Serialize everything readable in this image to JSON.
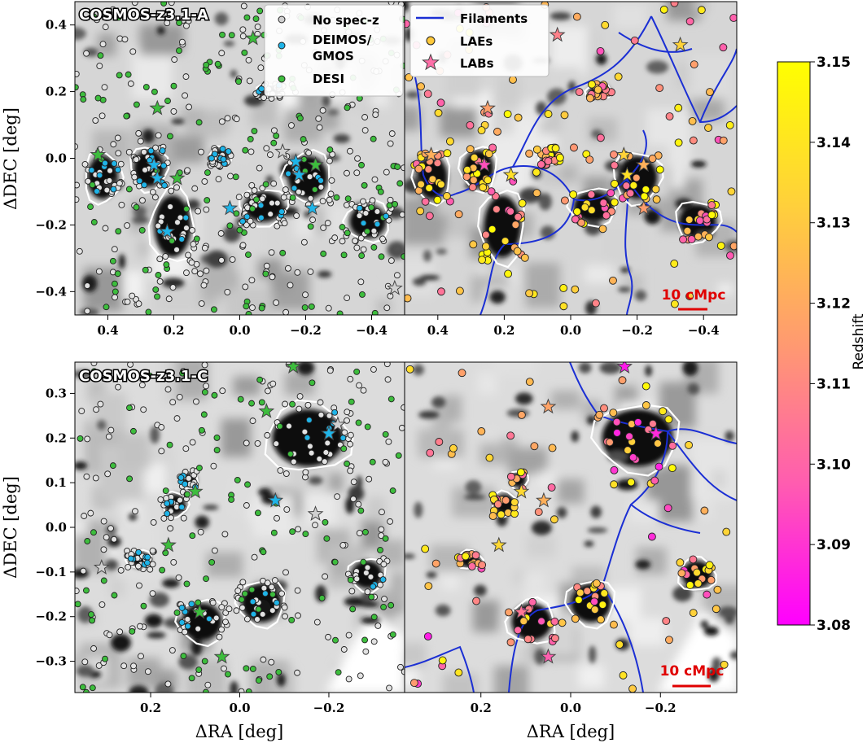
{
  "chart_data": [
    {
      "type": "scatter",
      "panel": "top-left",
      "field_label": "COSMOS-z3.1-A",
      "xlabel": "",
      "ylabel": "ΔDEC [deg]",
      "xlim": [
        0.5,
        -0.5
      ],
      "ylim": [
        -0.47,
        0.47
      ],
      "xticks": [
        "0.4",
        "0.2",
        "0.0",
        "−0.2",
        "−0.4"
      ],
      "yticks": [
        "0.4",
        "0.2",
        "0.0",
        "−0.2",
        "−0.4"
      ],
      "legend": {
        "position": "top-right",
        "entries": [
          "No spec-z",
          "DEIMOS/\nGMOS",
          "DESI"
        ]
      },
      "series": [
        {
          "name": "No spec-z",
          "color": "#d0d0d0"
        },
        {
          "name": "DEIMOS/\nGMOS",
          "color": "#1fb4e8",
          "points": [
            [
              0.26,
              -0.02
            ],
            [
              0.25,
              -0.06
            ],
            [
              0.22,
              -0.22
            ],
            [
              0.19,
              -0.24
            ],
            [
              0.05,
              -0.14
            ],
            [
              0.02,
              -0.16
            ],
            [
              -0.17,
              -0.02
            ],
            [
              -0.18,
              -0.06
            ],
            [
              -0.2,
              -0.1
            ],
            [
              -0.22,
              -0.15
            ],
            [
              -0.4,
              -0.19
            ],
            [
              -0.43,
              -0.2
            ]
          ]
        },
        {
          "name": "DESI",
          "color": "#3dbd3d",
          "points": [
            [
              0.43,
              0.01
            ],
            [
              0.25,
              0.15
            ],
            [
              0.18,
              -0.06
            ],
            [
              0.05,
              0.37
            ],
            [
              -0.21,
              -0.03
            ]
          ]
        }
      ],
      "labs": [
        {
          "type": "star",
          "color": "#3dbd3d",
          "x": -0.04,
          "y": 0.36
        },
        {
          "type": "star",
          "color": "#3dbd3d",
          "x": 0.25,
          "y": 0.15
        },
        {
          "type": "star",
          "color": "#3dbd3d",
          "x": 0.43,
          "y": 0.01
        },
        {
          "type": "star",
          "color": "#1fb4e8",
          "x": 0.26,
          "y": -0.02
        },
        {
          "type": "star",
          "color": "#1fb4e8",
          "x": 0.25,
          "y": -0.06
        },
        {
          "type": "star",
          "color": "#3dbd3d",
          "x": 0.19,
          "y": -0.06
        },
        {
          "type": "star",
          "color": "#1fb4e8",
          "x": 0.22,
          "y": -0.22
        },
        {
          "type": "star",
          "color": "#1fb4e8",
          "x": 0.03,
          "y": -0.15
        },
        {
          "type": "star",
          "color": "#1fb4e8",
          "x": -0.17,
          "y": -0.01
        },
        {
          "type": "star",
          "color": "#3dbd3d",
          "x": -0.23,
          "y": -0.02
        },
        {
          "type": "star",
          "color": "#1fb4e8",
          "x": -0.18,
          "y": -0.05
        },
        {
          "type": "star",
          "color": "#1fb4e8",
          "x": -0.22,
          "y": -0.15
        },
        {
          "type": "star",
          "color": "#d0d0d0",
          "x": -0.13,
          "y": 0.02
        },
        {
          "type": "star",
          "color": "#d0d0d0",
          "x": -0.47,
          "y": -0.39
        }
      ]
    },
    {
      "type": "scatter",
      "panel": "top-right",
      "xlabel": "",
      "ylabel": "",
      "xlim": [
        0.5,
        -0.5
      ],
      "ylim": [
        -0.47,
        0.47
      ],
      "xticks": [
        "0.4",
        "0.2",
        "0.0",
        "−0.2",
        "−0.4"
      ],
      "legend": {
        "position": "top-left",
        "entries": [
          "Filaments",
          "LAEs",
          "LABs"
        ]
      },
      "scale_bar": "10 cMpc",
      "labs": [
        {
          "x": 0.04,
          "y": 0.37,
          "z": 3.108
        },
        {
          "x": -0.33,
          "y": 0.34,
          "z": 3.133
        },
        {
          "x": 0.25,
          "y": 0.15,
          "z": 3.117
        },
        {
          "x": 0.42,
          "y": 0.01,
          "z": 3.122
        },
        {
          "x": 0.26,
          "y": -0.02,
          "z": 3.095
        },
        {
          "x": 0.18,
          "y": -0.05,
          "z": 3.138
        },
        {
          "x": -0.16,
          "y": 0.01,
          "z": 3.133
        },
        {
          "x": -0.17,
          "y": -0.05,
          "z": 3.138
        },
        {
          "x": -0.22,
          "y": -0.02,
          "z": 3.122
        },
        {
          "x": -0.22,
          "y": -0.15,
          "z": 3.116
        }
      ]
    },
    {
      "type": "scatter",
      "panel": "bottom-left",
      "field_label": "COSMOS-z3.1-C",
      "xlabel": "ΔRA [deg]",
      "ylabel": "ΔDEC [deg]",
      "xlim": [
        0.37,
        -0.37
      ],
      "ylim": [
        -0.37,
        0.37
      ],
      "xticks": [
        "0.2",
        "0.0",
        "−0.2"
      ],
      "yticks": [
        "0.3",
        "0.2",
        "0.1",
        "0.0",
        "−0.1",
        "−0.2",
        "−0.3"
      ],
      "labs": [
        {
          "type": "star",
          "color": "#3dbd3d",
          "x": -0.12,
          "y": 0.36
        },
        {
          "type": "star",
          "color": "#3dbd3d",
          "x": -0.06,
          "y": 0.26
        },
        {
          "type": "star",
          "color": "#d0d0d0",
          "x": -0.22,
          "y": 0.23
        },
        {
          "type": "star",
          "color": "#1fb4e8",
          "x": -0.2,
          "y": 0.21
        },
        {
          "type": "star",
          "color": "#3dbd3d",
          "x": 0.1,
          "y": 0.08
        },
        {
          "type": "star",
          "color": "#1fb4e8",
          "x": -0.08,
          "y": 0.06
        },
        {
          "type": "star",
          "color": "#d0d0d0",
          "x": -0.17,
          "y": 0.03
        },
        {
          "type": "star",
          "color": "#3dbd3d",
          "x": 0.16,
          "y": -0.04
        },
        {
          "type": "star",
          "color": "#d0d0d0",
          "x": 0.31,
          "y": -0.09
        },
        {
          "type": "star",
          "color": "#3dbd3d",
          "x": 0.09,
          "y": -0.19
        },
        {
          "type": "star",
          "color": "#3dbd3d",
          "x": 0.04,
          "y": -0.29
        }
      ]
    },
    {
      "type": "scatter",
      "panel": "bottom-right",
      "xlabel": "ΔRA [deg]",
      "ylabel": "",
      "xlim": [
        0.37,
        -0.37
      ],
      "ylim": [
        -0.37,
        0.37
      ],
      "xticks": [
        "0.2",
        "0.0",
        "−0.2"
      ],
      "scale_bar": "10 cMpc",
      "labs": [
        {
          "x": -0.12,
          "y": 0.36,
          "z": 3.085
        },
        {
          "x": 0.05,
          "y": 0.27,
          "z": 3.118
        },
        {
          "x": -0.19,
          "y": 0.21,
          "z": 3.088
        },
        {
          "x": 0.11,
          "y": 0.08,
          "z": 3.135
        },
        {
          "x": 0.06,
          "y": 0.06,
          "z": 3.122
        },
        {
          "x": 0.16,
          "y": -0.04,
          "z": 3.135
        },
        {
          "x": 0.11,
          "y": -0.19,
          "z": 3.105
        },
        {
          "x": 0.05,
          "y": -0.29,
          "z": 3.098
        }
      ]
    }
  ],
  "colorbar": {
    "label": "Redshift",
    "min": 3.08,
    "max": 3.15,
    "ticks": [
      "3.15",
      "3.14",
      "3.13",
      "3.12",
      "3.11",
      "3.10",
      "3.09",
      "3.08"
    ],
    "colors": [
      "#ff00ff",
      "#ff5cb0",
      "#ff9a70",
      "#ffd13a",
      "#ffff00"
    ]
  },
  "legends": {
    "left": [
      "No spec-z",
      "DEIMOS/",
      "GMOS",
      "DESI"
    ],
    "right": [
      "Filaments",
      "LAEs",
      "LABs"
    ]
  },
  "scale_label": "10 cMpc",
  "field_labels": [
    "COSMOS-z3.1-A",
    "COSMOS-z3.1-C"
  ],
  "axis_labels": {
    "ylabel": "ΔDEC [deg]",
    "xlabel": "ΔRA [deg]"
  }
}
